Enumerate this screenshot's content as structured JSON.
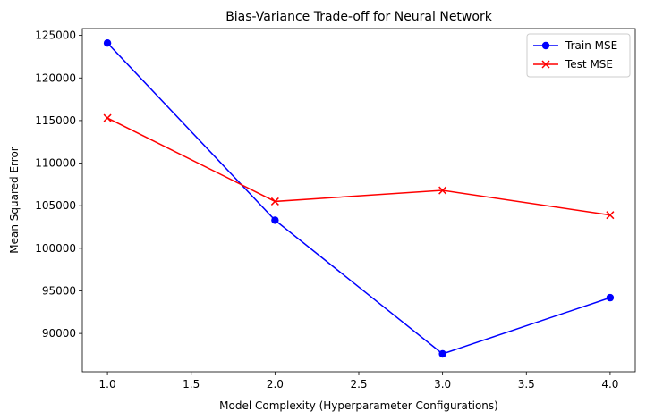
{
  "chart_data": {
    "type": "line",
    "title": "Bias-Variance Trade-off for Neural Network",
    "xlabel": "Model Complexity (Hyperparameter Configurations)",
    "ylabel": "Mean Squared Error",
    "xlim": [
      0.85,
      4.15
    ],
    "ylim": [
      85500,
      125800
    ],
    "x_ticks": [
      1.0,
      1.5,
      2.0,
      2.5,
      3.0,
      3.5,
      4.0
    ],
    "x_tick_labels": [
      "1.0",
      "1.5",
      "2.0",
      "2.5",
      "3.0",
      "3.5",
      "4.0"
    ],
    "y_ticks": [
      90000,
      95000,
      100000,
      105000,
      110000,
      115000,
      120000,
      125000
    ],
    "y_tick_labels": [
      "90000",
      "95000",
      "100000",
      "105000",
      "110000",
      "115000",
      "120000",
      "125000"
    ],
    "grid": false,
    "legend_position": "top-right",
    "x": [
      1,
      2,
      3,
      4
    ],
    "series": [
      {
        "name": "Train MSE",
        "values": [
          124100,
          103300,
          87600,
          94200
        ],
        "color": "#0000ff",
        "marker": "circle"
      },
      {
        "name": "Test MSE",
        "values": [
          115300,
          105500,
          106800,
          103900
        ],
        "color": "#ff0000",
        "marker": "x"
      }
    ]
  }
}
